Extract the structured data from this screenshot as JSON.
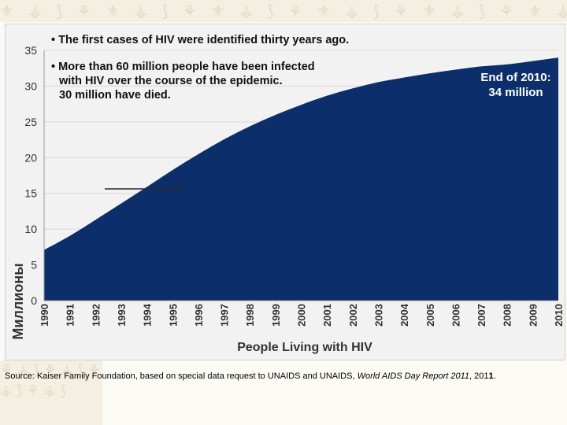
{
  "chart_data": {
    "type": "area",
    "x": [
      "1990",
      "1991",
      "1992",
      "1993",
      "1994",
      "1995",
      "1996",
      "1997",
      "1998",
      "1999",
      "2000",
      "2001",
      "2002",
      "2003",
      "2004",
      "2005",
      "2006",
      "2007",
      "2008",
      "2009",
      "2010"
    ],
    "values": [
      7.1,
      9.0,
      11.3,
      13.6,
      15.9,
      18.3,
      20.5,
      22.6,
      24.4,
      26.0,
      27.4,
      28.7,
      29.7,
      30.6,
      31.2,
      31.8,
      32.3,
      32.8,
      33.0,
      33.5,
      34.0
    ],
    "ylim": [
      0,
      35
    ],
    "yticks": [
      0,
      5,
      10,
      15,
      20,
      25,
      30,
      35
    ],
    "ylabel": "Миллионы",
    "xlabel": "People Living with HIV",
    "fill_color": "#0c2f6b",
    "bullets": [
      "The first cases of HIV were identified thirty years ago.",
      [
        "More than 60 million people have been infected",
        "with HIV over the course of the epidemic.",
        "30 million have died."
      ]
    ],
    "annotation": [
      "End of 2010:",
      "34 million"
    ]
  },
  "source": {
    "prefix": "Source: Kaiser Family Foundation, based on special data request to UNAIDS and UNAIDS, ",
    "report": "World AIDS Day Report 2011",
    "year_start": ", 201",
    "year_end": "1",
    "period": "."
  },
  "decor": {
    "pattern": "⚜ ⚶ ⟆ ⚘ ⚜ ⚶ ⟆ ⚘ ⚜ ⚶ ⟆ ⚘ ⚜ ⚶ ⟆ ⚘ ⚜ ⚶ ⟆ ⚘ ⚜ ⚶ ⟆ ⚘",
    "corner_pattern": "⚘ ⚶ ⟆ ⚘ ⚶ ⟆ ⚘ ⚶ ⟆ ⚘ ⚶ ⟆"
  }
}
